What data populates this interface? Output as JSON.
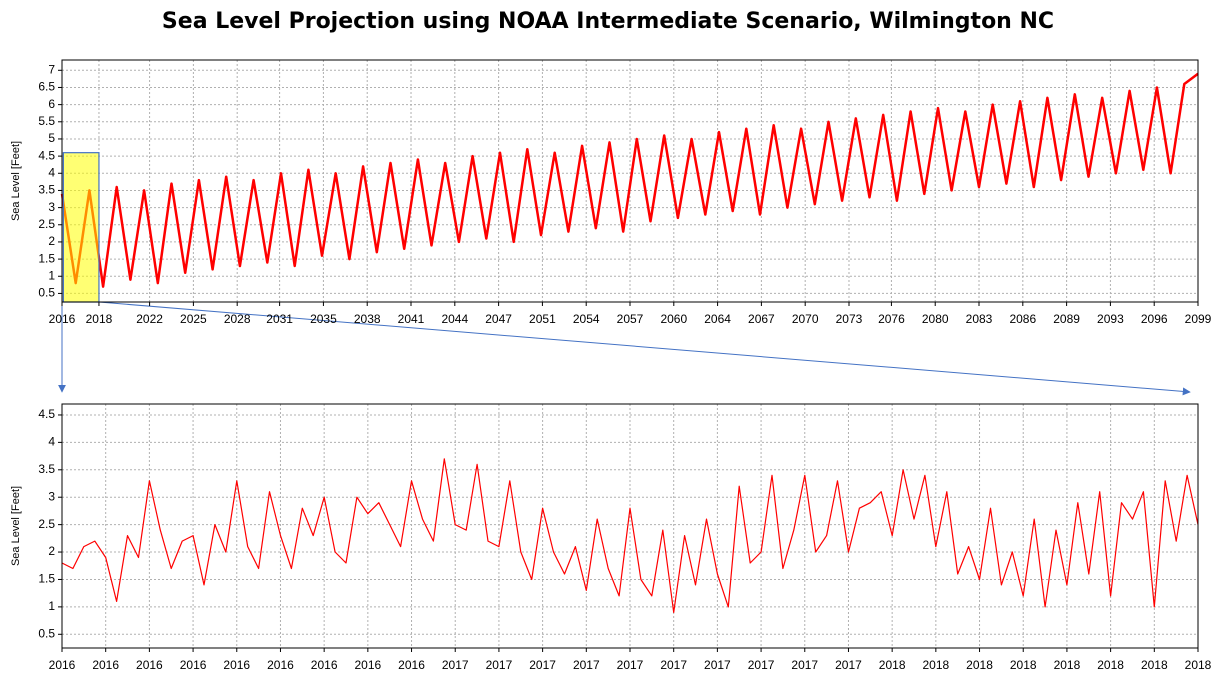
{
  "chart_data": [
    {
      "type": "line",
      "title": "Sea Level Projection using NOAA Intermediate Scenario, Wilmington NC",
      "ylabel": "Sea Level [Feet]",
      "x": [
        2016,
        2017,
        2018,
        2019,
        2020,
        2021,
        2022,
        2023,
        2024,
        2025,
        2026,
        2027,
        2028,
        2029,
        2030,
        2031,
        2032,
        2033,
        2034,
        2035,
        2036,
        2037,
        2038,
        2039,
        2040,
        2041,
        2042,
        2043,
        2044,
        2045,
        2046,
        2047,
        2048,
        2049,
        2050,
        2051,
        2052,
        2053,
        2054,
        2055,
        2056,
        2057,
        2058,
        2059,
        2060,
        2061,
        2062,
        2063,
        2064,
        2065,
        2066,
        2067,
        2068,
        2069,
        2070,
        2071,
        2072,
        2073,
        2074,
        2075,
        2076,
        2077,
        2078,
        2079,
        2080,
        2081,
        2082,
        2083,
        2084,
        2085,
        2086,
        2087,
        2088,
        2089,
        2090,
        2091,
        2092,
        2093,
        2094,
        2095,
        2096,
        2097,
        2098,
        2099
      ],
      "series": [
        {
          "color": "#ff0000",
          "values": [
            3.4,
            0.8,
            3.5,
            0.7,
            3.6,
            0.9,
            3.5,
            0.8,
            3.7,
            1.1,
            3.8,
            1.2,
            3.9,
            1.3,
            3.8,
            1.4,
            4.0,
            1.3,
            4.1,
            1.6,
            4.0,
            1.5,
            4.2,
            1.7,
            4.3,
            1.8,
            4.4,
            1.9,
            4.3,
            2.0,
            4.5,
            2.1,
            4.6,
            2.0,
            4.7,
            2.2,
            4.6,
            2.3,
            4.8,
            2.4,
            4.9,
            2.3,
            5.0,
            2.6,
            5.1,
            2.7,
            5.0,
            2.8,
            5.2,
            2.9,
            5.3,
            2.8,
            5.4,
            3.0,
            5.3,
            3.1,
            5.5,
            3.2,
            5.6,
            3.3,
            5.7,
            3.2,
            5.8,
            3.4,
            5.9,
            3.5,
            5.8,
            3.6,
            6.0,
            3.7,
            6.1,
            3.6,
            6.2,
            3.8,
            6.3,
            3.9,
            6.2,
            4.0,
            6.4,
            4.1,
            6.5,
            4.0,
            6.6,
            6.9
          ]
        }
      ],
      "xlim": [
        2016,
        2099
      ],
      "ylim": [
        0.25,
        7.3
      ],
      "xticks": [
        {
          "value": 2016,
          "label": "2016"
        },
        {
          "value": 2018.7,
          "label": "2018"
        },
        {
          "value": 2022.4,
          "label": "2022"
        },
        {
          "value": 2025.6,
          "label": "2025"
        },
        {
          "value": 2028.8,
          "label": "2028"
        },
        {
          "value": 2031.9,
          "label": "2031"
        },
        {
          "value": 2035.1,
          "label": "2035"
        },
        {
          "value": 2038.3,
          "label": "2038"
        },
        {
          "value": 2041.5,
          "label": "2041"
        },
        {
          "value": 2044.7,
          "label": "2044"
        },
        {
          "value": 2047.9,
          "label": "2047"
        },
        {
          "value": 2051.1,
          "label": "2051"
        },
        {
          "value": 2054.3,
          "label": "2054"
        },
        {
          "value": 2057.5,
          "label": "2057"
        },
        {
          "value": 2060.7,
          "label": "2060"
        },
        {
          "value": 2063.9,
          "label": "2064"
        },
        {
          "value": 2067.1,
          "label": "2067"
        },
        {
          "value": 2070.3,
          "label": "2070"
        },
        {
          "value": 2073.5,
          "label": "2073"
        },
        {
          "value": 2076.6,
          "label": "2076"
        },
        {
          "value": 2079.8,
          "label": "2080"
        },
        {
          "value": 2083.0,
          "label": "2083"
        },
        {
          "value": 2086.2,
          "label": "2086"
        },
        {
          "value": 2089.4,
          "label": "2089"
        },
        {
          "value": 2092.6,
          "label": "2093"
        },
        {
          "value": 2095.8,
          "label": "2096"
        },
        {
          "value": 2099,
          "label": "2099"
        }
      ],
      "yticks": [
        0.5,
        1,
        1.5,
        2,
        2.5,
        3,
        3.5,
        4,
        4.5,
        5,
        5.5,
        6,
        6.5,
        7
      ],
      "grid": true,
      "zoom_window": {
        "xlim": [
          2016.1,
          2018.7
        ],
        "ylim": [
          0.25,
          4.6
        ],
        "color": "#ffff00"
      }
    },
    {
      "type": "line",
      "ylabel": "Sea Level [Feet]",
      "x": [
        2016.1,
        2016.125,
        2016.15,
        2016.175,
        2016.2,
        2016.225,
        2016.25,
        2016.275,
        2016.3,
        2016.325,
        2016.35,
        2016.375,
        2016.4,
        2016.425,
        2016.45,
        2016.475,
        2016.5,
        2016.525,
        2016.55,
        2016.575,
        2016.6,
        2016.625,
        2016.65,
        2016.675,
        2016.7,
        2016.725,
        2016.75,
        2016.775,
        2016.8,
        2016.825,
        2016.85,
        2016.875,
        2016.9,
        2016.925,
        2016.95,
        2016.975,
        2017.0,
        2017.025,
        2017.05,
        2017.075,
        2017.1,
        2017.125,
        2017.15,
        2017.175,
        2017.2,
        2017.225,
        2017.25,
        2017.275,
        2017.3,
        2017.325,
        2017.35,
        2017.375,
        2017.4,
        2017.425,
        2017.45,
        2017.475,
        2017.5,
        2017.525,
        2017.55,
        2017.575,
        2017.6,
        2017.625,
        2017.65,
        2017.675,
        2017.7,
        2017.725,
        2017.75,
        2017.775,
        2017.8,
        2017.825,
        2017.85,
        2017.875,
        2017.9,
        2017.925,
        2017.95,
        2017.975,
        2018.0,
        2018.025,
        2018.05,
        2018.075,
        2018.1,
        2018.125,
        2018.15,
        2018.175,
        2018.2,
        2018.225,
        2018.25,
        2018.275,
        2018.3,
        2018.325,
        2018.35,
        2018.375,
        2018.4,
        2018.425,
        2018.45,
        2018.475,
        2018.5,
        2018.525,
        2018.55,
        2018.575,
        2018.6,
        2018.625,
        2018.65,
        2018.675,
        2018.7
      ],
      "series": [
        {
          "color": "#ff0000",
          "values": [
            1.8,
            1.7,
            2.1,
            2.2,
            1.9,
            1.1,
            2.3,
            1.9,
            3.3,
            2.4,
            1.7,
            2.2,
            2.3,
            1.4,
            2.5,
            2.0,
            3.3,
            2.1,
            1.7,
            3.1,
            2.3,
            1.7,
            2.8,
            2.3,
            3.0,
            2.0,
            1.8,
            3.0,
            2.7,
            2.9,
            2.5,
            2.1,
            3.3,
            2.6,
            2.2,
            3.7,
            2.5,
            2.4,
            3.6,
            2.2,
            2.1,
            3.3,
            2.0,
            1.5,
            2.8,
            2.0,
            1.6,
            2.1,
            1.3,
            2.6,
            1.7,
            1.2,
            2.8,
            1.5,
            1.2,
            2.4,
            0.9,
            2.3,
            1.4,
            2.6,
            1.6,
            1.0,
            3.2,
            1.8,
            2.0,
            3.4,
            1.7,
            2.4,
            3.4,
            2.0,
            2.3,
            3.3,
            2.0,
            2.8,
            2.9,
            3.1,
            2.3,
            3.5,
            2.6,
            3.4,
            2.1,
            3.1,
            1.6,
            2.1,
            1.5,
            2.8,
            1.4,
            2.0,
            1.2,
            2.6,
            1.0,
            2.4,
            1.4,
            2.9,
            1.6,
            3.1,
            1.2,
            2.9,
            2.6,
            3.1,
            1.0,
            3.3,
            2.2,
            3.4,
            2.5
          ]
        }
      ],
      "xlim": [
        2016.1,
        2018.7
      ],
      "ylim": [
        0.25,
        4.7
      ],
      "xticks": [
        {
          "value": 2016.1,
          "label": "2016"
        },
        {
          "value": 2016.2,
          "label": "2016"
        },
        {
          "value": 2016.3,
          "label": "2016"
        },
        {
          "value": 2016.4,
          "label": "2016"
        },
        {
          "value": 2016.5,
          "label": "2016"
        },
        {
          "value": 2016.6,
          "label": "2016"
        },
        {
          "value": 2016.7,
          "label": "2016"
        },
        {
          "value": 2016.8,
          "label": "2016"
        },
        {
          "value": 2016.9,
          "label": "2016"
        },
        {
          "value": 2017.0,
          "label": "2017"
        },
        {
          "value": 2017.1,
          "label": "2017"
        },
        {
          "value": 2017.2,
          "label": "2017"
        },
        {
          "value": 2017.3,
          "label": "2017"
        },
        {
          "value": 2017.4,
          "label": "2017"
        },
        {
          "value": 2017.5,
          "label": "2017"
        },
        {
          "value": 2017.6,
          "label": "2017"
        },
        {
          "value": 2017.7,
          "label": "2017"
        },
        {
          "value": 2017.8,
          "label": "2017"
        },
        {
          "value": 2017.9,
          "label": "2017"
        },
        {
          "value": 2018.0,
          "label": "2018"
        },
        {
          "value": 2018.1,
          "label": "2018"
        },
        {
          "value": 2018.2,
          "label": "2018"
        },
        {
          "value": 2018.3,
          "label": "2018"
        },
        {
          "value": 2018.4,
          "label": "2018"
        },
        {
          "value": 2018.5,
          "label": "2018"
        },
        {
          "value": 2018.6,
          "label": "2018"
        },
        {
          "value": 2018.7,
          "label": "2018"
        }
      ],
      "yticks": [
        0.5,
        1,
        1.5,
        2,
        2.5,
        3,
        3.5,
        4,
        4.5
      ],
      "grid": true
    }
  ]
}
